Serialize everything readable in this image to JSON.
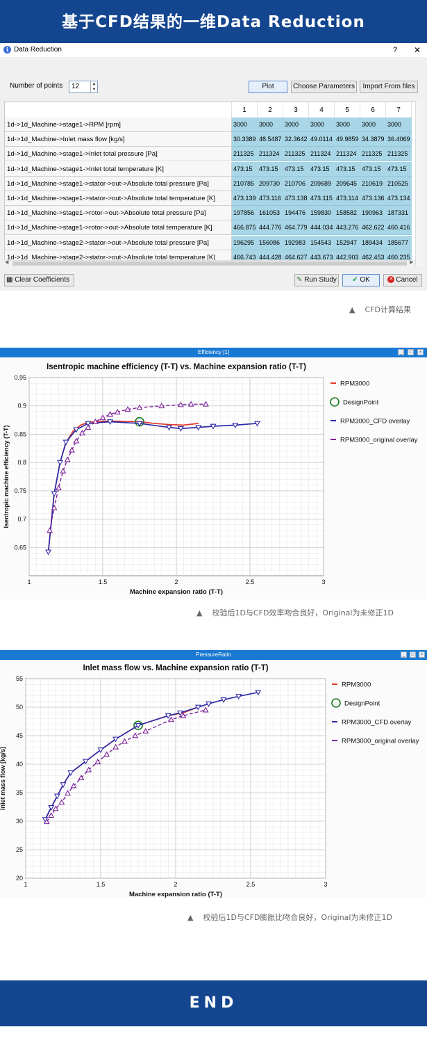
{
  "header": {
    "title": "基于CFD结果的一维Data Reduction"
  },
  "dialog": {
    "title": "Data Reduction",
    "help_label": "?",
    "close_label": "✕",
    "npoints_label": "Number of points",
    "npoints_value": "12",
    "buttons": {
      "plot": "Plot",
      "choose": "Choose Parameters",
      "import": "Import From files",
      "clear": "Clear Coefficients",
      "run": "Run Study",
      "ok": "OK",
      "cancel": "Cancel"
    },
    "columns": [
      "1",
      "2",
      "3",
      "4",
      "5",
      "6",
      "7"
    ],
    "rows": [
      {
        "label": "1d->1d_Machine->stage1->RPM [rpm]",
        "values": [
          "3000",
          "3000",
          "3000",
          "3000",
          "3000",
          "3000",
          "3000"
        ]
      },
      {
        "label": "1d->1d_Machine->Inlet mass flow [kg/s]",
        "values": [
          "30.3389",
          "48.5487",
          "32.3642",
          "49.0114",
          "49.9859",
          "34.3879",
          "36.4069"
        ]
      },
      {
        "label": "1d->1d_Machine->stage1->Inlet total pressure [Pa]",
        "values": [
          "211325",
          "211324",
          "211325",
          "211324",
          "211324",
          "211325",
          "211325"
        ]
      },
      {
        "label": "1d->1d_Machine->stage1->Inlet total temperature [K]",
        "values": [
          "473.15",
          "473.15",
          "473.15",
          "473.15",
          "473.15",
          "473.15",
          "473.15"
        ]
      },
      {
        "label": "1d->1d_Machine->stage1->stator->out->Absolute total pressure [Pa]",
        "values": [
          "210785",
          "209730",
          "210706",
          "209689",
          "209645",
          "210619",
          "210525"
        ]
      },
      {
        "label": "1d->1d_Machine->stage1->stator->out->Absolute total temperature [K]",
        "values": [
          "473.139",
          "473.116",
          "473.138",
          "473.115",
          "473.114",
          "473.136",
          "473.134"
        ]
      },
      {
        "label": "1d->1d_Machine->stage1->rotor->out->Absolute total pressure [Pa]",
        "values": [
          "197856",
          "161053",
          "194476",
          "159830",
          "158582",
          "190963",
          "187331"
        ]
      },
      {
        "label": "1d->1d_Machine->stage1->rotor->out->Absolute total temperature [K]",
        "values": [
          "466.875",
          "444.776",
          "464.779",
          "444.034",
          "443.276",
          "462.622",
          "460.416"
        ]
      },
      {
        "label": "1d->1d_Machine->stage2->stator->out->Absolute total pressure [Pa]",
        "values": [
          "196295",
          "156086",
          "192983",
          "154543",
          "152947",
          "189434",
          "185677"
        ]
      },
      {
        "label": "1d->1d_Machine->stage2->stator->out->Absolute total temperature [K]",
        "values": [
          "466.743",
          "444.428",
          "464.627",
          "443.673",
          "442.903",
          "462.453",
          "460.235"
        ]
      }
    ]
  },
  "captions": {
    "cfd": "CFD计算结果",
    "efficiency": "校验后1D与CFD效率吻合良好，Original为未修正1D",
    "pressure": "校验后1D与CFD膨胀比吻合良好，Original为未修正1D"
  },
  "caption_marker": "▲",
  "footer": {
    "text": "END"
  },
  "chart_data": [
    {
      "type": "line",
      "window_title": "Efficiency [1]",
      "title": "Isentropic machine efficiency (T-T) vs. Machine expansion ratio (T-T)",
      "xlabel": "Machine expansion ratio (T-T)",
      "ylabel": "Isentropic machine efficiency (T-T)",
      "xlim": [
        1,
        3
      ],
      "ylim": [
        0.6,
        0.95
      ],
      "xticks": [
        "1",
        "1.5",
        "2",
        "2.5",
        "3"
      ],
      "yticks": [
        "0.65",
        "0.7",
        "0.75",
        "0.8",
        "0.85",
        "0.9",
        "0.95"
      ],
      "xtick_values": [
        1,
        1.5,
        2,
        2.5,
        3
      ],
      "ytick_values": [
        0.65,
        0.7,
        0.75,
        0.8,
        0.85,
        0.9,
        0.95
      ],
      "grid": true,
      "legend_position": "right",
      "series": [
        {
          "name": "RPM3000",
          "color": "#e2382a",
          "style": "solid",
          "marker": "none",
          "x": [
            1.13,
            1.17,
            1.21,
            1.25,
            1.3,
            1.35,
            1.4,
            1.5,
            1.6,
            1.75,
            1.85,
            1.95,
            2.05,
            2.15
          ],
          "y": [
            0.642,
            0.745,
            0.8,
            0.835,
            0.856,
            0.866,
            0.871,
            0.873,
            0.873,
            0.872,
            0.869,
            0.867,
            0.866,
            0.869
          ]
        },
        {
          "name": "DesignPoint",
          "color": "#1a7a22",
          "style": "none",
          "marker": "circle",
          "x": [
            1.75
          ],
          "y": [
            0.872
          ]
        },
        {
          "name": "RPM3000_CFD overlay",
          "color": "#2d2aa8",
          "style": "solid",
          "marker": "triangle-down",
          "x": [
            1.13,
            1.17,
            1.21,
            1.25,
            1.32,
            1.4,
            1.55,
            1.75,
            1.95,
            2.03,
            2.15,
            2.25,
            2.4,
            2.55
          ],
          "y": [
            0.642,
            0.745,
            0.8,
            0.836,
            0.858,
            0.869,
            0.872,
            0.869,
            0.862,
            0.86,
            0.862,
            0.864,
            0.866,
            0.869
          ]
        },
        {
          "name": "RPM3000_original overlay",
          "color": "#7a1f9a",
          "style": "dashed",
          "marker": "triangle-up",
          "x": [
            1.14,
            1.17,
            1.2,
            1.23,
            1.26,
            1.29,
            1.32,
            1.36,
            1.4,
            1.45,
            1.5,
            1.55,
            1.6,
            1.67,
            1.75,
            1.9,
            2.03,
            2.1,
            2.2
          ],
          "y": [
            0.68,
            0.72,
            0.755,
            0.785,
            0.805,
            0.822,
            0.838,
            0.852,
            0.862,
            0.872,
            0.879,
            0.885,
            0.889,
            0.894,
            0.897,
            0.9,
            0.902,
            0.903,
            0.903
          ]
        }
      ]
    },
    {
      "type": "line",
      "window_title": "PressureRatio",
      "title": "Inlet mass flow vs. Machine expansion ratio (T-T)",
      "xlabel": "Machine expansion ratio (T-T)",
      "ylabel": "Inlet mass flow [kg/s]",
      "xlim": [
        1,
        3
      ],
      "ylim": [
        20,
        55
      ],
      "xticks": [
        "1",
        "1.5",
        "2",
        "2.5",
        "3"
      ],
      "yticks": [
        "20",
        "25",
        "30",
        "35",
        "40",
        "45",
        "50",
        "55"
      ],
      "xtick_values": [
        1,
        1.5,
        2,
        2.5,
        3
      ],
      "ytick_values": [
        20,
        25,
        30,
        35,
        40,
        45,
        50,
        55
      ],
      "grid": true,
      "legend_position": "right",
      "series": [
        {
          "name": "RPM3000",
          "color": "#e2382a",
          "style": "solid",
          "marker": "none",
          "x": [
            1.13,
            1.17,
            1.21,
            1.25,
            1.3,
            1.4,
            1.5,
            1.6,
            1.75,
            1.95,
            2.05,
            2.15
          ],
          "y": [
            30.3,
            32.4,
            34.4,
            36.4,
            38.5,
            40.5,
            42.5,
            44.4,
            46.8,
            48.5,
            49.0,
            50.0
          ]
        },
        {
          "name": "DesignPoint",
          "color": "#1a7a22",
          "style": "none",
          "marker": "circle",
          "x": [
            1.75
          ],
          "y": [
            46.8
          ]
        },
        {
          "name": "RPM3000_CFD overlay",
          "color": "#2d2aa8",
          "style": "solid",
          "marker": "triangle-down",
          "x": [
            1.13,
            1.17,
            1.21,
            1.25,
            1.3,
            1.4,
            1.5,
            1.6,
            1.75,
            1.95,
            2.03,
            2.15,
            2.22,
            2.32,
            2.42,
            2.55
          ],
          "y": [
            30.3,
            32.4,
            34.4,
            36.4,
            38.5,
            40.5,
            42.5,
            44.4,
            46.8,
            48.5,
            49.0,
            50.0,
            50.6,
            51.3,
            51.9,
            52.6
          ]
        },
        {
          "name": "RPM3000_original overlay",
          "color": "#7a1f9a",
          "style": "dashed",
          "marker": "triangle-up",
          "x": [
            1.14,
            1.17,
            1.2,
            1.24,
            1.28,
            1.32,
            1.37,
            1.42,
            1.48,
            1.54,
            1.6,
            1.66,
            1.73,
            1.8,
            1.97,
            2.05,
            2.2
          ],
          "y": [
            29.9,
            31.0,
            32.2,
            33.3,
            34.9,
            36.2,
            37.6,
            39.0,
            40.4,
            41.7,
            43.0,
            44.0,
            45.0,
            45.8,
            47.8,
            48.5,
            49.5
          ]
        }
      ]
    }
  ]
}
